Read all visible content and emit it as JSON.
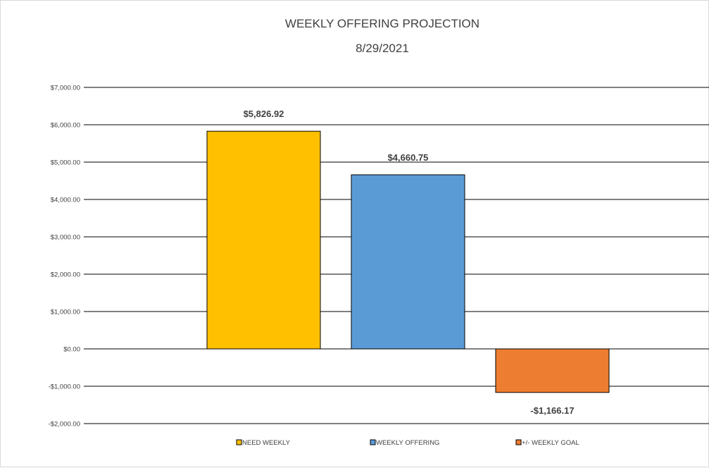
{
  "chart_data": {
    "type": "bar",
    "title": "WEEKLY OFFERING PROJECTION",
    "subtitle": "8/29/2021",
    "categories": [
      "NEED WEEKLY",
      "WEEKLY OFFERING",
      "+/- WEEKLY GOAL"
    ],
    "values": [
      5826.92,
      4660.75,
      -1166.17
    ],
    "data_labels": [
      "$5,826.92",
      "$4,660.75",
      "-$1,166.17"
    ],
    "colors": [
      "#FFC000",
      "#5B9BD5",
      "#ED7D31"
    ],
    "ylim": [
      -2000,
      7000
    ],
    "yticks": [
      7000,
      6000,
      5000,
      4000,
      3000,
      2000,
      1000,
      0,
      -1000,
      -2000
    ],
    "ytick_labels": [
      "$7,000.00",
      "$6,000.00",
      "$5,000.00",
      "$4,000.00",
      "$3,000.00",
      "$2,000.00",
      "$1,000.00",
      "$0.00",
      "-$1,000.00",
      "-$2,000.00"
    ],
    "grid": true,
    "legend": "bottom",
    "xlabel": "",
    "ylabel": ""
  }
}
